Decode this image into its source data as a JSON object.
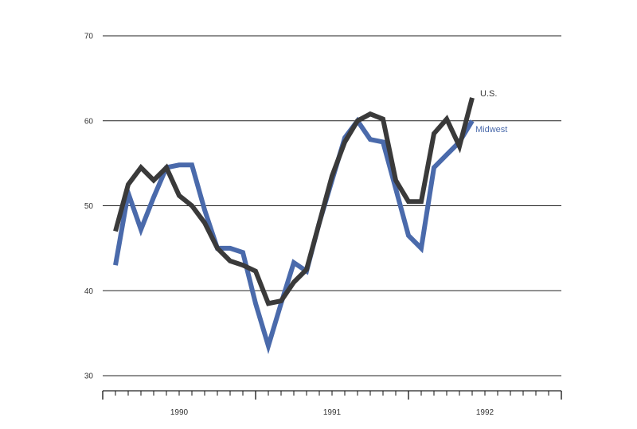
{
  "chart_data": {
    "type": "line",
    "title": "",
    "xlabel": "",
    "ylabel": "",
    "ylim": [
      30,
      70
    ],
    "y_ticks": [
      30,
      40,
      50,
      60,
      70
    ],
    "y_tick_labels": [
      "30",
      "40",
      "50",
      "60",
      "70"
    ],
    "year_labels": [
      "1990",
      "1991",
      "1992"
    ],
    "grid": "horizontal",
    "colors": {
      "us": "#3a3a3a",
      "midwest": "#4a6aab",
      "grid": "#222222"
    },
    "series": [
      {
        "name": "U.S.",
        "values": [
          47,
          52.5,
          54.5,
          53,
          54.5,
          51.2,
          50,
          48,
          45,
          43.5,
          43,
          42.3,
          38.5,
          38.8,
          41,
          42.5,
          48,
          53.5,
          57.5,
          60,
          60.8,
          60.2,
          53,
          50.5,
          50.5,
          58.5,
          60.2,
          57,
          62.7
        ]
      },
      {
        "name": "Midwest",
        "values": [
          43,
          51.5,
          47.2,
          51,
          54.5,
          54.8,
          54.8,
          49.5,
          45,
          45,
          44.5,
          38.5,
          33.5,
          38.5,
          43.3,
          42.3,
          48,
          53,
          58,
          60,
          57.8,
          57.5,
          52,
          46.5,
          45,
          54.5,
          56,
          57.5,
          60
        ]
      }
    ]
  }
}
